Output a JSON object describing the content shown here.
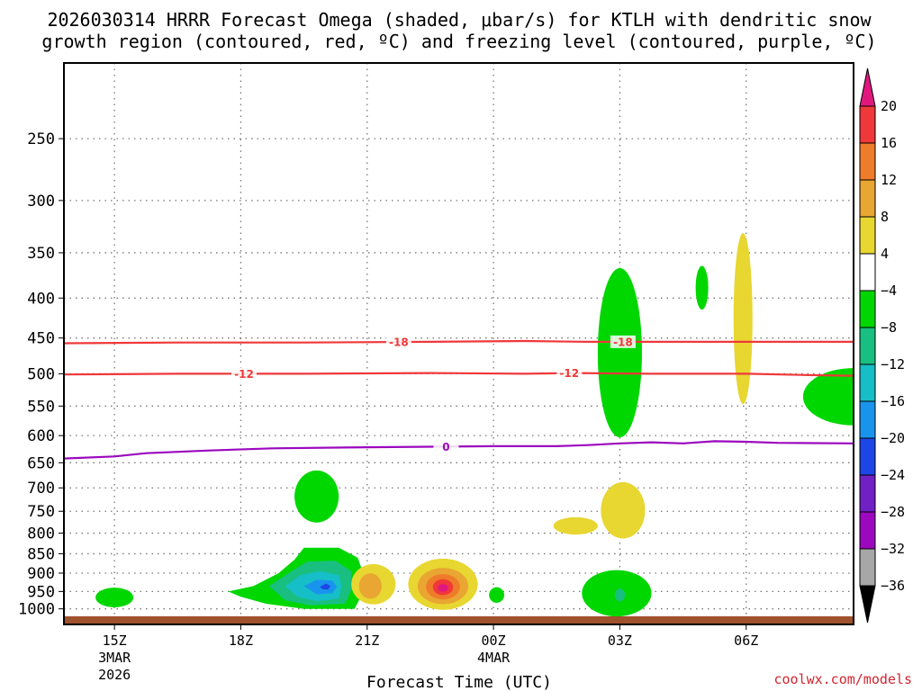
{
  "chart_data": {
    "type": "contour",
    "title_line1": "2026030314 HRRR Forecast Omega (shaded, μbar/s) for KTLH with dendritic snow",
    "title_line2": "growth region (contoured, red, ºC) and freezing level (contoured, purple, ºC)",
    "xlabel": "Forecast Time (UTC)",
    "credit": "coolwx.com/models",
    "x_range_hours": [
      -0.8,
      11.7
    ],
    "y_range_hPa": [
      1025,
      200
    ],
    "x_ticks": [
      {
        "hour": 0,
        "label": "15Z",
        "sub1": "3MAR",
        "sub2": "2026"
      },
      {
        "hour": 2,
        "label": "18Z",
        "sub1": "",
        "sub2": ""
      },
      {
        "hour": 4,
        "label": "21Z",
        "sub1": "",
        "sub2": ""
      },
      {
        "hour": 6,
        "label": "00Z",
        "sub1": "4MAR",
        "sub2": ""
      },
      {
        "hour": 8,
        "label": "03Z",
        "sub1": "",
        "sub2": ""
      },
      {
        "hour": 10,
        "label": "06Z",
        "sub1": "",
        "sub2": ""
      }
    ],
    "y_ticks": [
      {
        "hPa": 250,
        "label": "250"
      },
      {
        "hPa": 300,
        "label": "300"
      },
      {
        "hPa": 350,
        "label": "350"
      },
      {
        "hPa": 400,
        "label": "400"
      },
      {
        "hPa": 450,
        "label": "450"
      },
      {
        "hPa": 500,
        "label": "500"
      },
      {
        "hPa": 550,
        "label": "550"
      },
      {
        "hPa": 600,
        "label": "600"
      },
      {
        "hPa": 650,
        "label": "650"
      },
      {
        "hPa": 700,
        "label": "700"
      },
      {
        "hPa": 750,
        "label": "750"
      },
      {
        "hPa": 800,
        "label": "800"
      },
      {
        "hPa": 850,
        "label": "850"
      },
      {
        "hPa": 900,
        "label": "900"
      },
      {
        "hPa": 950,
        "label": "950"
      },
      {
        "hPa": 1000,
        "label": "1000"
      }
    ],
    "colorbar": {
      "levels": [
        20,
        16,
        12,
        8,
        4,
        -4,
        -8,
        -12,
        -16,
        -20,
        -24,
        -28,
        -32,
        -36
      ],
      "labels": [
        "20",
        "16",
        "12",
        "8",
        "4",
        "−4",
        "−8",
        "−12",
        "−16",
        "−20",
        "−24",
        "−28",
        "−32",
        "−36"
      ],
      "top_triangle_color": "#e0187e",
      "bottom_triangle_color": "#000000",
      "segments": [
        {
          "value": 18,
          "color": "#f0383a"
        },
        {
          "value": 14,
          "color": "#ef7c2a"
        },
        {
          "value": 10,
          "color": "#e9a632"
        },
        {
          "value": 6,
          "color": "#e8d631"
        },
        {
          "value": 0,
          "color": "#ffffff"
        },
        {
          "value": -6,
          "color": "#00d700"
        },
        {
          "value": -10,
          "color": "#18bf80"
        },
        {
          "value": -14,
          "color": "#16bec8"
        },
        {
          "value": -18,
          "color": "#1994ec"
        },
        {
          "value": -22,
          "color": "#1d46e6"
        },
        {
          "value": -26,
          "color": "#7120c6"
        },
        {
          "value": -30,
          "color": "#9b08be"
        },
        {
          "value": -34,
          "color": "#a7a7a7"
        }
      ]
    },
    "contour_lines": [
      {
        "name": "dgz-minus18",
        "label": "-18",
        "value_C": -18,
        "color": "#f0383a",
        "points_hour_hPa": [
          [
            -0.8,
            457
          ],
          [
            1,
            456
          ],
          [
            3,
            456
          ],
          [
            5,
            455
          ],
          [
            6.5,
            454
          ],
          [
            7.5,
            455
          ],
          [
            9,
            455
          ],
          [
            11.7,
            455
          ]
        ],
        "label_positions": [
          [
            4.5,
            455
          ],
          [
            8.05,
            455
          ]
        ]
      },
      {
        "name": "dgz-minus12",
        "label": "-12",
        "value_C": -12,
        "color": "#f0383a",
        "points_hour_hPa": [
          [
            -0.8,
            501
          ],
          [
            1,
            500
          ],
          [
            3,
            500
          ],
          [
            5,
            499
          ],
          [
            6.5,
            500
          ],
          [
            7.3,
            499
          ],
          [
            8.5,
            500
          ],
          [
            10,
            500
          ],
          [
            11,
            502
          ],
          [
            11.7,
            503
          ]
        ],
        "label_positions": [
          [
            2.05,
            500
          ],
          [
            7.2,
            499
          ]
        ]
      },
      {
        "name": "freezing-level-0",
        "label": "0",
        "value_C": 0,
        "color": "#9b08be",
        "points_hour_hPa": [
          [
            -0.8,
            642
          ],
          [
            0,
            638
          ],
          [
            0.5,
            632
          ],
          [
            1.5,
            627
          ],
          [
            2.5,
            623
          ],
          [
            4,
            621
          ],
          [
            5,
            620
          ],
          [
            6,
            619
          ],
          [
            7,
            619
          ],
          [
            7.5,
            617
          ],
          [
            8,
            614
          ],
          [
            8.5,
            612
          ],
          [
            9,
            614
          ],
          [
            9.5,
            610
          ],
          [
            10,
            611
          ],
          [
            10.5,
            613
          ],
          [
            11.7,
            614
          ]
        ],
        "label_positions": [
          [
            5.25,
            620
          ]
        ]
      }
    ],
    "shaded_regions": [
      {
        "name": "omega-blob-15z-low",
        "value": -6,
        "center_hour": 0,
        "center_hPa": 967,
        "half_width_hours": 0.3,
        "half_height_hPa": 28
      },
      {
        "name": "omega-sinking-03z-mid",
        "value": -6,
        "center_hour": 8,
        "center_hPa": 470,
        "half_width_hours": 0.35,
        "half_height_hPa": 115
      },
      {
        "name": "omega-small-green-0430z",
        "value": -6,
        "center_hour": 9.3,
        "center_hPa": 388,
        "half_width_hours": 0.1,
        "half_height_hPa": 25
      },
      {
        "name": "omega-yellow-06z-upper",
        "value": 6,
        "center_hour": 9.95,
        "center_hPa": 425,
        "half_width_hours": 0.15,
        "half_height_hPa": 105
      },
      {
        "name": "omega-green-right-edge",
        "value": -6,
        "center_hour": 11.7,
        "center_hPa": 535,
        "half_width_hours": 0.8,
        "half_height_hPa": 45
      },
      {
        "name": "omega-green-20z-700",
        "value": -6,
        "center_hour": 3.2,
        "center_hPa": 718,
        "half_width_hours": 0.35,
        "half_height_hPa": 55
      },
      {
        "name": "omega-yellow-0130z-800",
        "value": 6,
        "center_hour": 7.3,
        "center_hPa": 783,
        "half_width_hours": 0.35,
        "half_height_hPa": 20
      },
      {
        "name": "omega-yellow-03z-750",
        "value": 6,
        "center_hour": 8.05,
        "center_hPa": 748,
        "half_width_hours": 0.35,
        "half_height_hPa": 62
      },
      {
        "name": "omega-yellow-21z-low",
        "value": 6,
        "center_hour": 4.1,
        "center_hPa": 930,
        "half_width_hours": 0.35,
        "half_height_hPa": 55
      },
      {
        "name": "omega-orange-21z-low",
        "value": 10,
        "center_hour": 4.05,
        "center_hPa": 935,
        "half_width_hours": 0.18,
        "half_height_hPa": 35
      },
      {
        "name": "omega-yellow-2230z-low",
        "value": 6,
        "center_hour": 5.2,
        "center_hPa": 930,
        "half_width_hours": 0.55,
        "half_height_hPa": 70
      },
      {
        "name": "omega-gold-2230z-low",
        "value": 10,
        "center_hour": 5.2,
        "center_hPa": 935,
        "half_width_hours": 0.4,
        "half_height_hPa": 50
      },
      {
        "name": "omega-orange-2230z-low",
        "value": 14,
        "center_hour": 5.2,
        "center_hPa": 937,
        "half_width_hours": 0.27,
        "half_height_hPa": 35
      },
      {
        "name": "omega-red-2230z-low",
        "value": 18,
        "center_hour": 5.2,
        "center_hPa": 938,
        "half_width_hours": 0.16,
        "half_height_hPa": 22
      },
      {
        "name": "omega-magenta-2230z-low",
        "value": 22,
        "center_hour": 5.2,
        "center_hPa": 940,
        "half_width_hours": 0.08,
        "half_height_hPa": 11
      },
      {
        "name": "omega-green-0030z-low",
        "value": -6,
        "center_hour": 6.05,
        "center_hPa": 960,
        "half_width_hours": 0.12,
        "half_height_hPa": 22
      },
      {
        "name": "omega-green-03z-low",
        "value": -6,
        "center_hour": 7.95,
        "center_hPa": 955,
        "half_width_hours": 0.55,
        "half_height_hPa": 65
      },
      {
        "name": "omega-teal-03z-low",
        "value": -10,
        "center_hour": 8.0,
        "center_hPa": 960,
        "half_width_hours": 0.08,
        "half_height_hPa": 18
      }
    ],
    "big_green_area": {
      "name": "omega-rising-19z-20z",
      "levels": [
        -6,
        -10,
        -14,
        -18,
        -22
      ]
    },
    "ground_color": "#a0522d"
  }
}
